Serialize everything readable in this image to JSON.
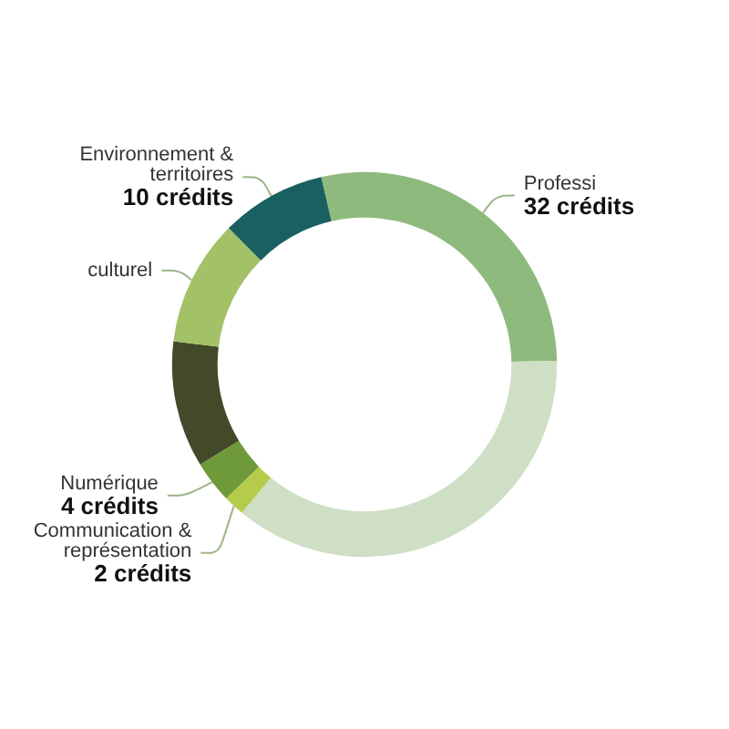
{
  "chart_data": {
    "type": "donut",
    "categories": [
      "Professi",
      null,
      "Communication & représentation",
      "Numérique",
      null,
      "culturel",
      "Environnement & territoires"
    ],
    "values": [
      32,
      41,
      2,
      4,
      12,
      12,
      10
    ],
    "colors": [
      "#8fba7d",
      "#cfdfc6",
      "#b5cc4a",
      "#6e9a3a",
      "#434a2a",
      "#a3c267",
      "#1a6060"
    ],
    "value_labels": [
      "32 crédits",
      null,
      "2 crédits",
      "4 crédits",
      null,
      null,
      "10 crédits"
    ]
  }
}
